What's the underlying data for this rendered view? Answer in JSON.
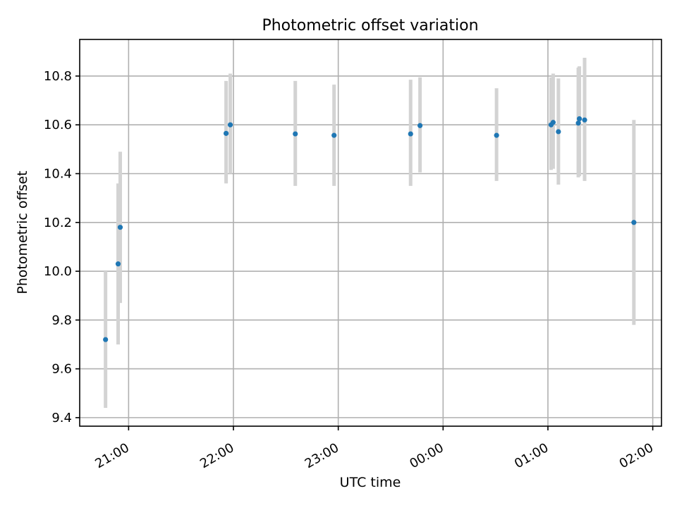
{
  "chart_data": {
    "type": "scatter",
    "title": "Photometric offset variation",
    "xlabel": "UTC time",
    "ylabel": "Photometric offset",
    "x_axis_type": "time",
    "xlim": [
      "20:32",
      "02:05"
    ],
    "ylim": [
      9.365,
      10.95
    ],
    "x_ticks": [
      "21:00",
      "22:00",
      "23:00",
      "00:00",
      "01:00",
      "02:00"
    ],
    "x_ticks_hours": [
      21,
      22,
      23,
      24,
      25,
      26
    ],
    "y_ticks": [
      9.4,
      9.6,
      9.8,
      10.0,
      10.2,
      10.4,
      10.6,
      10.8
    ],
    "y_tick_labels": [
      "9.4",
      "9.6",
      "9.8",
      "10.0",
      "10.2",
      "10.4",
      "10.6",
      "10.8"
    ],
    "grid": true,
    "x_tick_rotation_deg": 30,
    "series": [
      {
        "points": [
          {
            "time": "20:47",
            "hour": 20.78,
            "y": 9.72,
            "err_low": 9.44,
            "err_high": 10.0
          },
          {
            "time": "20:54",
            "hour": 20.9,
            "y": 10.03,
            "err_low": 9.7,
            "err_high": 10.36
          },
          {
            "time": "20:55",
            "hour": 20.92,
            "y": 10.18,
            "err_low": 9.87,
            "err_high": 10.49
          },
          {
            "time": "21:56",
            "hour": 21.93,
            "y": 10.565,
            "err_low": 10.36,
            "err_high": 10.78
          },
          {
            "time": "21:58",
            "hour": 21.97,
            "y": 10.6,
            "err_low": 10.4,
            "err_high": 10.81
          },
          {
            "time": "22:35",
            "hour": 22.59,
            "y": 10.563,
            "err_low": 10.35,
            "err_high": 10.78
          },
          {
            "time": "22:57",
            "hour": 22.96,
            "y": 10.557,
            "err_low": 10.35,
            "err_high": 10.765
          },
          {
            "time": "23:41",
            "hour": 23.69,
            "y": 10.563,
            "err_low": 10.35,
            "err_high": 10.785
          },
          {
            "time": "23:47",
            "hour": 23.78,
            "y": 10.597,
            "err_low": 10.405,
            "err_high": 10.795
          },
          {
            "time": "00:30",
            "hour": 24.51,
            "y": 10.557,
            "err_low": 10.37,
            "err_high": 10.75
          },
          {
            "time": "01:02",
            "hour": 25.03,
            "y": 10.6,
            "err_low": 10.415,
            "err_high": 10.795
          },
          {
            "time": "01:03",
            "hour": 25.05,
            "y": 10.61,
            "err_low": 10.42,
            "err_high": 10.81
          },
          {
            "time": "01:06",
            "hour": 25.1,
            "y": 10.572,
            "err_low": 10.355,
            "err_high": 10.79
          },
          {
            "time": "01:17",
            "hour": 25.29,
            "y": 10.607,
            "err_low": 10.385,
            "err_high": 10.835
          },
          {
            "time": "01:18",
            "hour": 25.3,
            "y": 10.625,
            "err_low": 10.39,
            "err_high": 10.84
          },
          {
            "time": "01:21",
            "hour": 25.35,
            "y": 10.62,
            "err_low": 10.37,
            "err_high": 10.875
          },
          {
            "time": "01:49",
            "hour": 25.82,
            "y": 10.2,
            "err_low": 9.78,
            "err_high": 10.62
          }
        ]
      }
    ],
    "colors": {
      "points": "#1f77b4",
      "error_bars": "#d3d3d3",
      "grid": "#b0b0b0",
      "axes": "#000000"
    }
  }
}
